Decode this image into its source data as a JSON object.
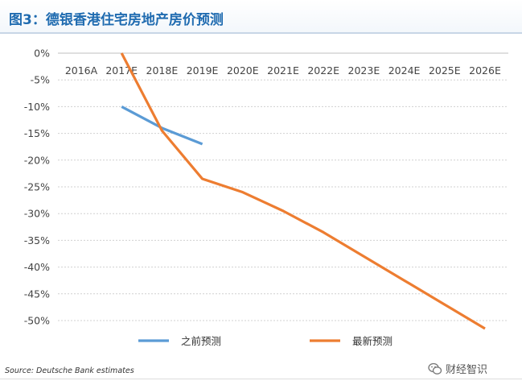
{
  "header": {
    "title": "图3：德银香港住宅房地产房价预测"
  },
  "chart_data": {
    "type": "line",
    "title": "图3：德银香港住宅房地产房价预测",
    "categories": [
      "2016A",
      "2017E",
      "2018E",
      "2019E",
      "2020E",
      "2021E",
      "2022E",
      "2023E",
      "2024E",
      "2025E",
      "2026E"
    ],
    "ylim": [
      -50,
      0
    ],
    "y_ticks": [
      0,
      -5,
      -10,
      -15,
      -20,
      -25,
      -30,
      -35,
      -40,
      -45,
      -50
    ],
    "y_tick_labels": [
      "0%",
      "-5%",
      "-10%",
      "-15%",
      "-20%",
      "-25%",
      "-30%",
      "-35%",
      "-40%",
      "-45%",
      "-50%"
    ],
    "x_axis_position": "top",
    "grid": true,
    "series": [
      {
        "name": "之前预测",
        "color": "#5b9bd5",
        "values": [
          null,
          -10,
          -14,
          -17,
          null,
          null,
          null,
          null,
          null,
          null,
          null
        ]
      },
      {
        "name": "最新预测",
        "color": "#ed7d31",
        "values": [
          null,
          0,
          -14.5,
          -23.5,
          -26,
          -29.5,
          -33.5,
          -38,
          -42.5,
          -47,
          -51.5
        ]
      }
    ],
    "legend_position": "bottom"
  },
  "footer": {
    "source": "Source: Deutsche Bank estimates",
    "brand": "财经智识",
    "brand_icon": "wechat-icon"
  }
}
